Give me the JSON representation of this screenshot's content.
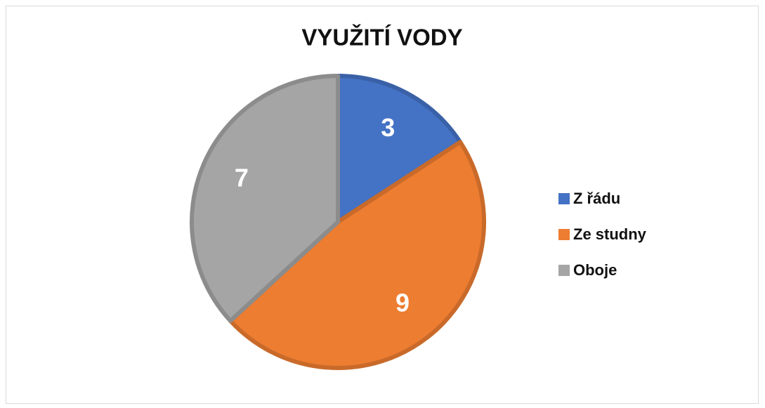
{
  "chart_data": {
    "type": "pie",
    "title": "VYUŽITÍ VODY",
    "categories": [
      "Z řádu",
      "Ze studny",
      "Oboje"
    ],
    "values": [
      3,
      9,
      7
    ],
    "colors": [
      "#4472c4",
      "#ed7d31",
      "#a5a5a5"
    ],
    "legend": "right"
  }
}
